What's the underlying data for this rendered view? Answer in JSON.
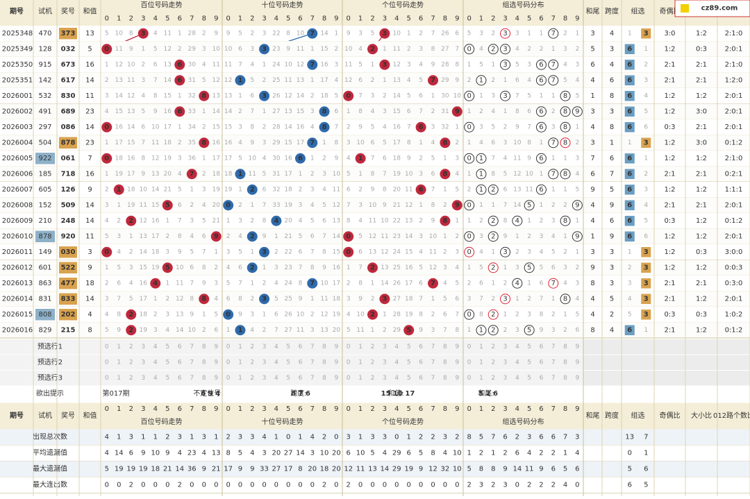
{
  "logo": "cz89.com",
  "header": {
    "period": "期号",
    "trial": "试机",
    "prize": "奖号",
    "sum": "和值",
    "hundreds": "百位号码走势",
    "tens": "十位号码走势",
    "units": "个位号码走势",
    "group_dist": "组选号码分布",
    "sum_tail": "和尾",
    "span": "跨度",
    "group": "组选",
    "odd_even": "奇偶比",
    "big_small": "大小比",
    "route": "012路个数比"
  },
  "digits": [
    0,
    1,
    2,
    3,
    4,
    5,
    6,
    7,
    8,
    9
  ],
  "rows": [
    {
      "period": "2025348",
      "trial": "470",
      "prize": "373",
      "sum": 13,
      "hundreds": [
        5,
        10,
        8,
        3,
        4,
        11,
        1,
        28,
        2,
        9
      ],
      "tens": [
        9,
        5,
        2,
        3,
        22,
        8,
        10,
        7,
        14,
        1
      ],
      "units": [
        9,
        3,
        5,
        3,
        10,
        1,
        2,
        7,
        26,
        6
      ],
      "group_dist": [
        5,
        3,
        2,
        3,
        3,
        1,
        1,
        7,
        2,
        1
      ],
      "sum_tail": 3,
      "span": 4,
      "group": [
        1,
        3
      ],
      "odd_even": "3:0",
      "big_small": "1:2",
      "route": "2:1:0"
    },
    {
      "period": "2025349",
      "trial": "128",
      "prize": "032",
      "sum": 5,
      "hundreds": [
        0,
        11,
        9,
        1,
        5,
        12,
        2,
        29,
        3,
        10
      ],
      "tens": [
        10,
        6,
        3,
        3,
        23,
        9,
        11,
        1,
        15,
        2
      ],
      "units": [
        10,
        4,
        2,
        1,
        11,
        2,
        3,
        8,
        27,
        7
      ],
      "group_dist": [
        0,
        4,
        2,
        3,
        4,
        2,
        2,
        1,
        3,
        2
      ],
      "sum_tail": 5,
      "span": 3,
      "group": [
        6,
        1
      ],
      "odd_even": "1:2",
      "big_small": "0:3",
      "route": "2:0:1"
    },
    {
      "period": "2025350",
      "trial": "915",
      "prize": "673",
      "sum": 16,
      "hundreds": [
        1,
        12,
        10,
        2,
        6,
        13,
        6,
        30,
        4,
        11
      ],
      "tens": [
        11,
        7,
        4,
        1,
        24,
        10,
        12,
        7,
        16,
        3
      ],
      "units": [
        11,
        5,
        1,
        3,
        12,
        3,
        4,
        9,
        28,
        8
      ],
      "group_dist": [
        1,
        5,
        1,
        3,
        5,
        3,
        6,
        7,
        4,
        3
      ],
      "sum_tail": 6,
      "span": 4,
      "group": [
        6,
        2
      ],
      "odd_even": "2:1",
      "big_small": "2:1",
      "route": "2:1:0"
    },
    {
      "period": "2025351",
      "trial": "142",
      "prize": "617",
      "sum": 14,
      "hundreds": [
        2,
        13,
        11,
        3,
        7,
        14,
        6,
        31,
        5,
        12
      ],
      "tens": [
        12,
        1,
        5,
        2,
        25,
        11,
        13,
        1,
        17,
        4
      ],
      "units": [
        12,
        6,
        2,
        1,
        13,
        4,
        5,
        7,
        29,
        9
      ],
      "group_dist": [
        2,
        1,
        2,
        1,
        6,
        4,
        6,
        7,
        5,
        4
      ],
      "sum_tail": 4,
      "span": 6,
      "group": [
        6,
        3
      ],
      "odd_even": "2:1",
      "big_small": "2:1",
      "route": "1:2:0"
    },
    {
      "period": "2026001",
      "trial": "532",
      "prize": "830",
      "sum": 11,
      "hundreds": [
        3,
        14,
        12,
        4,
        8,
        15,
        1,
        32,
        8,
        13
      ],
      "tens": [
        13,
        1,
        6,
        3,
        26,
        12,
        14,
        2,
        18,
        5
      ],
      "units": [
        0,
        7,
        3,
        2,
        14,
        5,
        6,
        1,
        30,
        10
      ],
      "group_dist": [
        0,
        1,
        3,
        3,
        7,
        5,
        1,
        1,
        8,
        5
      ],
      "sum_tail": 1,
      "span": 8,
      "group": [
        6,
        4
      ],
      "odd_even": "1:2",
      "big_small": "1:2",
      "route": "2:0:1"
    },
    {
      "period": "2026002",
      "trial": "491",
      "prize": "689",
      "sum": 23,
      "hundreds": [
        4,
        15,
        13,
        5,
        9,
        16,
        6,
        33,
        1,
        14
      ],
      "tens": [
        14,
        2,
        7,
        1,
        27,
        13,
        15,
        3,
        8,
        6
      ],
      "units": [
        1,
        8,
        4,
        3,
        15,
        6,
        7,
        2,
        31,
        9
      ],
      "group_dist": [
        1,
        2,
        4,
        1,
        8,
        6,
        6,
        2,
        8,
        9
      ],
      "sum_tail": 3,
      "span": 3,
      "group": [
        6,
        5
      ],
      "odd_even": "1:2",
      "big_small": "3:0",
      "route": "2:0:1"
    },
    {
      "period": "2026003",
      "trial": "297",
      "prize": "086",
      "sum": 14,
      "hundreds": [
        0,
        16,
        14,
        6,
        10,
        17,
        1,
        34,
        2,
        15
      ],
      "tens": [
        15,
        3,
        8,
        2,
        28,
        14,
        16,
        4,
        8,
        7
      ],
      "units": [
        2,
        9,
        5,
        4,
        16,
        7,
        6,
        3,
        32,
        1
      ],
      "group_dist": [
        0,
        3,
        5,
        2,
        9,
        7,
        6,
        3,
        8,
        1
      ],
      "sum_tail": 4,
      "span": 8,
      "group": [
        6,
        6
      ],
      "odd_even": "0:3",
      "big_small": "2:1",
      "route": "2:0:1"
    },
    {
      "period": "2026004",
      "trial": "504",
      "prize": "878",
      "sum": 23,
      "hundreds": [
        1,
        17,
        15,
        7,
        11,
        18,
        2,
        35,
        8,
        16
      ],
      "tens": [
        16,
        4,
        9,
        3,
        29,
        15,
        17,
        7,
        1,
        8
      ],
      "units": [
        3,
        10,
        6,
        5,
        17,
        8,
        1,
        4,
        8,
        2
      ],
      "group_dist": [
        1,
        4,
        6,
        3,
        10,
        8,
        1,
        7,
        8,
        2
      ],
      "sum_tail": 3,
      "span": 1,
      "group": [
        1,
        3
      ],
      "odd_even": "1:2",
      "big_small": "3:0",
      "route": "0:1:2"
    },
    {
      "period": "2026005",
      "trial": "922",
      "prize": "061",
      "sum": 7,
      "hundreds": [
        0,
        18,
        16,
        8,
        12,
        19,
        3,
        36,
        1,
        17
      ],
      "tens": [
        17,
        5,
        10,
        4,
        30,
        16,
        6,
        1,
        2,
        9
      ],
      "units": [
        4,
        1,
        7,
        6,
        18,
        9,
        2,
        5,
        1,
        3
      ],
      "group_dist": [
        0,
        1,
        7,
        4,
        11,
        9,
        6,
        1,
        1,
        3
      ],
      "sum_tail": 7,
      "span": 6,
      "group": [
        6,
        1
      ],
      "odd_even": "1:2",
      "big_small": "1:2",
      "route": "2:1:0"
    },
    {
      "period": "2026006",
      "trial": "185",
      "prize": "718",
      "sum": 16,
      "hundreds": [
        1,
        19,
        17,
        9,
        13,
        20,
        4,
        7,
        2,
        18
      ],
      "tens": [
        18,
        1,
        11,
        5,
        31,
        17,
        1,
        2,
        3,
        10
      ],
      "units": [
        5,
        1,
        8,
        7,
        19,
        10,
        3,
        6,
        8,
        4
      ],
      "group_dist": [
        1,
        1,
        8,
        5,
        12,
        10,
        1,
        7,
        8,
        4
      ],
      "sum_tail": 6,
      "span": 7,
      "group": [
        6,
        2
      ],
      "odd_even": "2:1",
      "big_small": "2:1",
      "route": "0:2:1"
    },
    {
      "period": "2026007",
      "trial": "605",
      "prize": "126",
      "sum": 9,
      "hundreds": [
        2,
        1,
        18,
        10,
        14,
        21,
        5,
        1,
        3,
        19
      ],
      "tens": [
        19,
        1,
        2,
        6,
        32,
        18,
        2,
        3,
        4,
        11
      ],
      "units": [
        6,
        2,
        9,
        8,
        20,
        11,
        6,
        7,
        1,
        5
      ],
      "group_dist": [
        2,
        1,
        2,
        6,
        13,
        11,
        6,
        1,
        1,
        5
      ],
      "sum_tail": 9,
      "span": 5,
      "group": [
        6,
        3
      ],
      "odd_even": "1:2",
      "big_small": "1:2",
      "route": "1:1:1"
    },
    {
      "period": "2026008",
      "trial": "152",
      "prize": "509",
      "sum": 14,
      "hundreds": [
        3,
        1,
        19,
        11,
        15,
        5,
        6,
        2,
        4,
        20
      ],
      "tens": [
        0,
        2,
        1,
        7,
        33,
        19,
        3,
        4,
        5,
        12
      ],
      "units": [
        7,
        3,
        10,
        9,
        21,
        12,
        1,
        8,
        2,
        9
      ],
      "group_dist": [
        0,
        1,
        1,
        7,
        14,
        5,
        1,
        2,
        2,
        9
      ],
      "sum_tail": 4,
      "span": 9,
      "group": [
        6,
        4
      ],
      "odd_even": "2:1",
      "big_small": "2:1",
      "route": "2:0:1"
    },
    {
      "period": "2026009",
      "trial": "210",
      "prize": "248",
      "sum": 14,
      "hundreds": [
        4,
        2,
        2,
        12,
        16,
        1,
        7,
        3,
        5,
        21
      ],
      "tens": [
        1,
        3,
        2,
        8,
        4,
        20,
        4,
        5,
        6,
        13
      ],
      "units": [
        8,
        4,
        11,
        10,
        22,
        13,
        2,
        9,
        8,
        1
      ],
      "group_dist": [
        1,
        2,
        2,
        8,
        4,
        1,
        2,
        3,
        8,
        1
      ],
      "sum_tail": 4,
      "span": 6,
      "group": [
        6,
        5
      ],
      "odd_even": "0:3",
      "big_small": "1:2",
      "route": "0:1:2"
    },
    {
      "period": "2026010",
      "trial": "878",
      "prize": "920",
      "sum": 11,
      "hundreds": [
        5,
        3,
        1,
        13,
        17,
        2,
        8,
        4,
        6,
        9
      ],
      "tens": [
        2,
        4,
        2,
        9,
        1,
        21,
        5,
        6,
        7,
        14
      ],
      "units": [
        0,
        5,
        12,
        11,
        23,
        14,
        3,
        10,
        1,
        2
      ],
      "group_dist": [
        0,
        3,
        2,
        9,
        1,
        2,
        3,
        4,
        1,
        9
      ],
      "sum_tail": 1,
      "span": 9,
      "group": [
        6,
        6
      ],
      "odd_even": "1:2",
      "big_small": "1:2",
      "route": "2:0:1"
    },
    {
      "period": "2026011",
      "trial": "149",
      "prize": "030",
      "sum": 3,
      "hundreds": [
        0,
        4,
        2,
        14,
        18,
        3,
        9,
        5,
        7,
        1
      ],
      "tens": [
        3,
        5,
        1,
        3,
        2,
        22,
        6,
        7,
        8,
        15
      ],
      "units": [
        0,
        6,
        13,
        12,
        24,
        15,
        4,
        11,
        2,
        3
      ],
      "group_dist": [
        0,
        4,
        1,
        3,
        2,
        3,
        4,
        5,
        2,
        1
      ],
      "sum_tail": 3,
      "span": 3,
      "group": [
        1,
        3
      ],
      "odd_even": "1:2",
      "big_small": "0:3",
      "route": "3:0:0"
    },
    {
      "period": "2026012",
      "trial": "601",
      "prize": "522",
      "sum": 9,
      "hundreds": [
        1,
        5,
        3,
        15,
        19,
        5,
        10,
        6,
        8,
        2
      ],
      "tens": [
        4,
        6,
        2,
        1,
        3,
        23,
        7,
        8,
        9,
        16
      ],
      "units": [
        1,
        7,
        2,
        13,
        25,
        16,
        5,
        12,
        3,
        4
      ],
      "group_dist": [
        1,
        5,
        2,
        1,
        3,
        5,
        5,
        6,
        3,
        2
      ],
      "sum_tail": 9,
      "span": 3,
      "group": [
        2,
        3
      ],
      "odd_even": "1:2",
      "big_small": "1:2",
      "route": "0:0:3"
    },
    {
      "period": "2026013",
      "trial": "863",
      "prize": "477",
      "sum": 18,
      "hundreds": [
        2,
        6,
        4,
        16,
        4,
        1,
        11,
        7,
        9,
        3
      ],
      "tens": [
        5,
        7,
        1,
        2,
        4,
        24,
        8,
        7,
        10,
        17
      ],
      "units": [
        2,
        8,
        1,
        14,
        26,
        17,
        6,
        7,
        4,
        5
      ],
      "group_dist": [
        2,
        6,
        1,
        2,
        4,
        1,
        6,
        7,
        4,
        3
      ],
      "sum_tail": 8,
      "span": 3,
      "group": [
        3,
        3
      ],
      "odd_even": "2:1",
      "big_small": "2:1",
      "route": "0:3:0"
    },
    {
      "period": "2026014",
      "trial": "831",
      "prize": "833",
      "sum": 14,
      "hundreds": [
        3,
        7,
        5,
        17,
        1,
        2,
        12,
        8,
        8,
        4
      ],
      "tens": [
        6,
        8,
        2,
        3,
        5,
        25,
        9,
        1,
        11,
        18
      ],
      "units": [
        3,
        9,
        2,
        3,
        27,
        18,
        7,
        1,
        5,
        6
      ],
      "group_dist": [
        3,
        7,
        2,
        3,
        1,
        2,
        7,
        1,
        8,
        4
      ],
      "sum_tail": 4,
      "span": 5,
      "group": [
        4,
        3
      ],
      "odd_even": "2:1",
      "big_small": "1:2",
      "route": "2:0:1"
    },
    {
      "period": "2026015",
      "trial": "808",
      "prize": "202",
      "sum": 4,
      "hundreds": [
        4,
        8,
        2,
        18,
        2,
        3,
        13,
        9,
        1,
        5
      ],
      "tens": [
        0,
        9,
        3,
        1,
        6,
        26,
        10,
        2,
        12,
        19
      ],
      "units": [
        4,
        10,
        2,
        1,
        28,
        19,
        8,
        2,
        6,
        7
      ],
      "group_dist": [
        0,
        8,
        2,
        1,
        2,
        3,
        8,
        2,
        1,
        5
      ],
      "sum_tail": 4,
      "span": 2,
      "group": [
        5,
        3
      ],
      "odd_even": "0:3",
      "big_small": "0:3",
      "route": "1:0:2"
    },
    {
      "period": "2026016",
      "trial": "829",
      "prize": "215",
      "sum": 8,
      "hundreds": [
        5,
        9,
        2,
        19,
        3,
        4,
        14,
        10,
        2,
        6
      ],
      "tens": [
        1,
        1,
        4,
        2,
        7,
        27,
        11,
        3,
        13,
        20
      ],
      "units": [
        5,
        11,
        1,
        2,
        29,
        5,
        9,
        3,
        7,
        8
      ],
      "group_dist": [
        1,
        1,
        2,
        2,
        3,
        5,
        9,
        3,
        2,
        6
      ],
      "sum_tail": 8,
      "span": 4,
      "group": [
        6,
        1
      ],
      "odd_even": "2:1",
      "big_small": "1:2",
      "route": "0:1:2"
    }
  ],
  "preselect": [
    "预选行1",
    "预选行2",
    "预选行3"
  ],
  "hint": {
    "label": "欲出提示",
    "period": "第017期",
    "items": [
      {
        "label": "不定位号:",
        "value": "6 9 4"
      },
      {
        "label": "跨度:",
        "value": "8 7 6"
      },
      {
        "label": "和值:",
        "value": "15 10 17"
      },
      {
        "label": "和尾:",
        "value": "5 2 6"
      }
    ]
  },
  "stats": [
    {
      "label": "出现总次数",
      "hundreds": [
        4,
        1,
        3,
        1,
        1,
        2,
        3,
        1,
        3,
        1
      ],
      "tens": [
        2,
        3,
        3,
        4,
        1,
        0,
        1,
        4,
        2,
        0
      ],
      "units": [
        3,
        1,
        3,
        3,
        0,
        1,
        2,
        2,
        3,
        2
      ],
      "group_dist": [
        8,
        5,
        7,
        6,
        2,
        3,
        6,
        6,
        7,
        3
      ],
      "group": [
        13,
        7
      ]
    },
    {
      "label": "平均遗漏值",
      "hundreds": [
        4,
        14,
        6,
        9,
        10,
        9,
        4,
        23,
        4,
        13
      ],
      "tens": [
        8,
        5,
        4,
        3,
        20,
        27,
        14,
        3,
        10,
        20
      ],
      "units": [
        6,
        10,
        5,
        4,
        29,
        6,
        5,
        8,
        4,
        10
      ],
      "group_dist": [
        1,
        2,
        1,
        2,
        6,
        4,
        2,
        2,
        1,
        4
      ],
      "group": [
        0,
        1
      ]
    },
    {
      "label": "最大遗漏值",
      "hundreds": [
        5,
        19,
        19,
        19,
        18,
        21,
        14,
        36,
        9,
        21
      ],
      "tens": [
        17,
        9,
        9,
        33,
        27,
        17,
        8,
        20,
        18,
        20
      ],
      "units": [
        12,
        11,
        13,
        14,
        29,
        19,
        9,
        12,
        32,
        10
      ],
      "group_dist": [
        5,
        8,
        8,
        9,
        14,
        11,
        9,
        6,
        5,
        6
      ],
      "group": [
        5,
        6
      ]
    },
    {
      "label": "最大连出数",
      "hundreds": [
        0,
        0,
        2,
        0,
        0,
        0,
        2,
        0,
        0,
        0
      ],
      "tens": [
        0,
        0,
        0,
        0,
        0,
        0,
        0,
        0,
        2,
        0
      ],
      "units": [
        2,
        0,
        0,
        0,
        0,
        0,
        0,
        0,
        0,
        0
      ],
      "group_dist": [
        2,
        3,
        2,
        3,
        0,
        2,
        2,
        2,
        4,
        0
      ],
      "group": [
        6,
        5
      ]
    }
  ]
}
